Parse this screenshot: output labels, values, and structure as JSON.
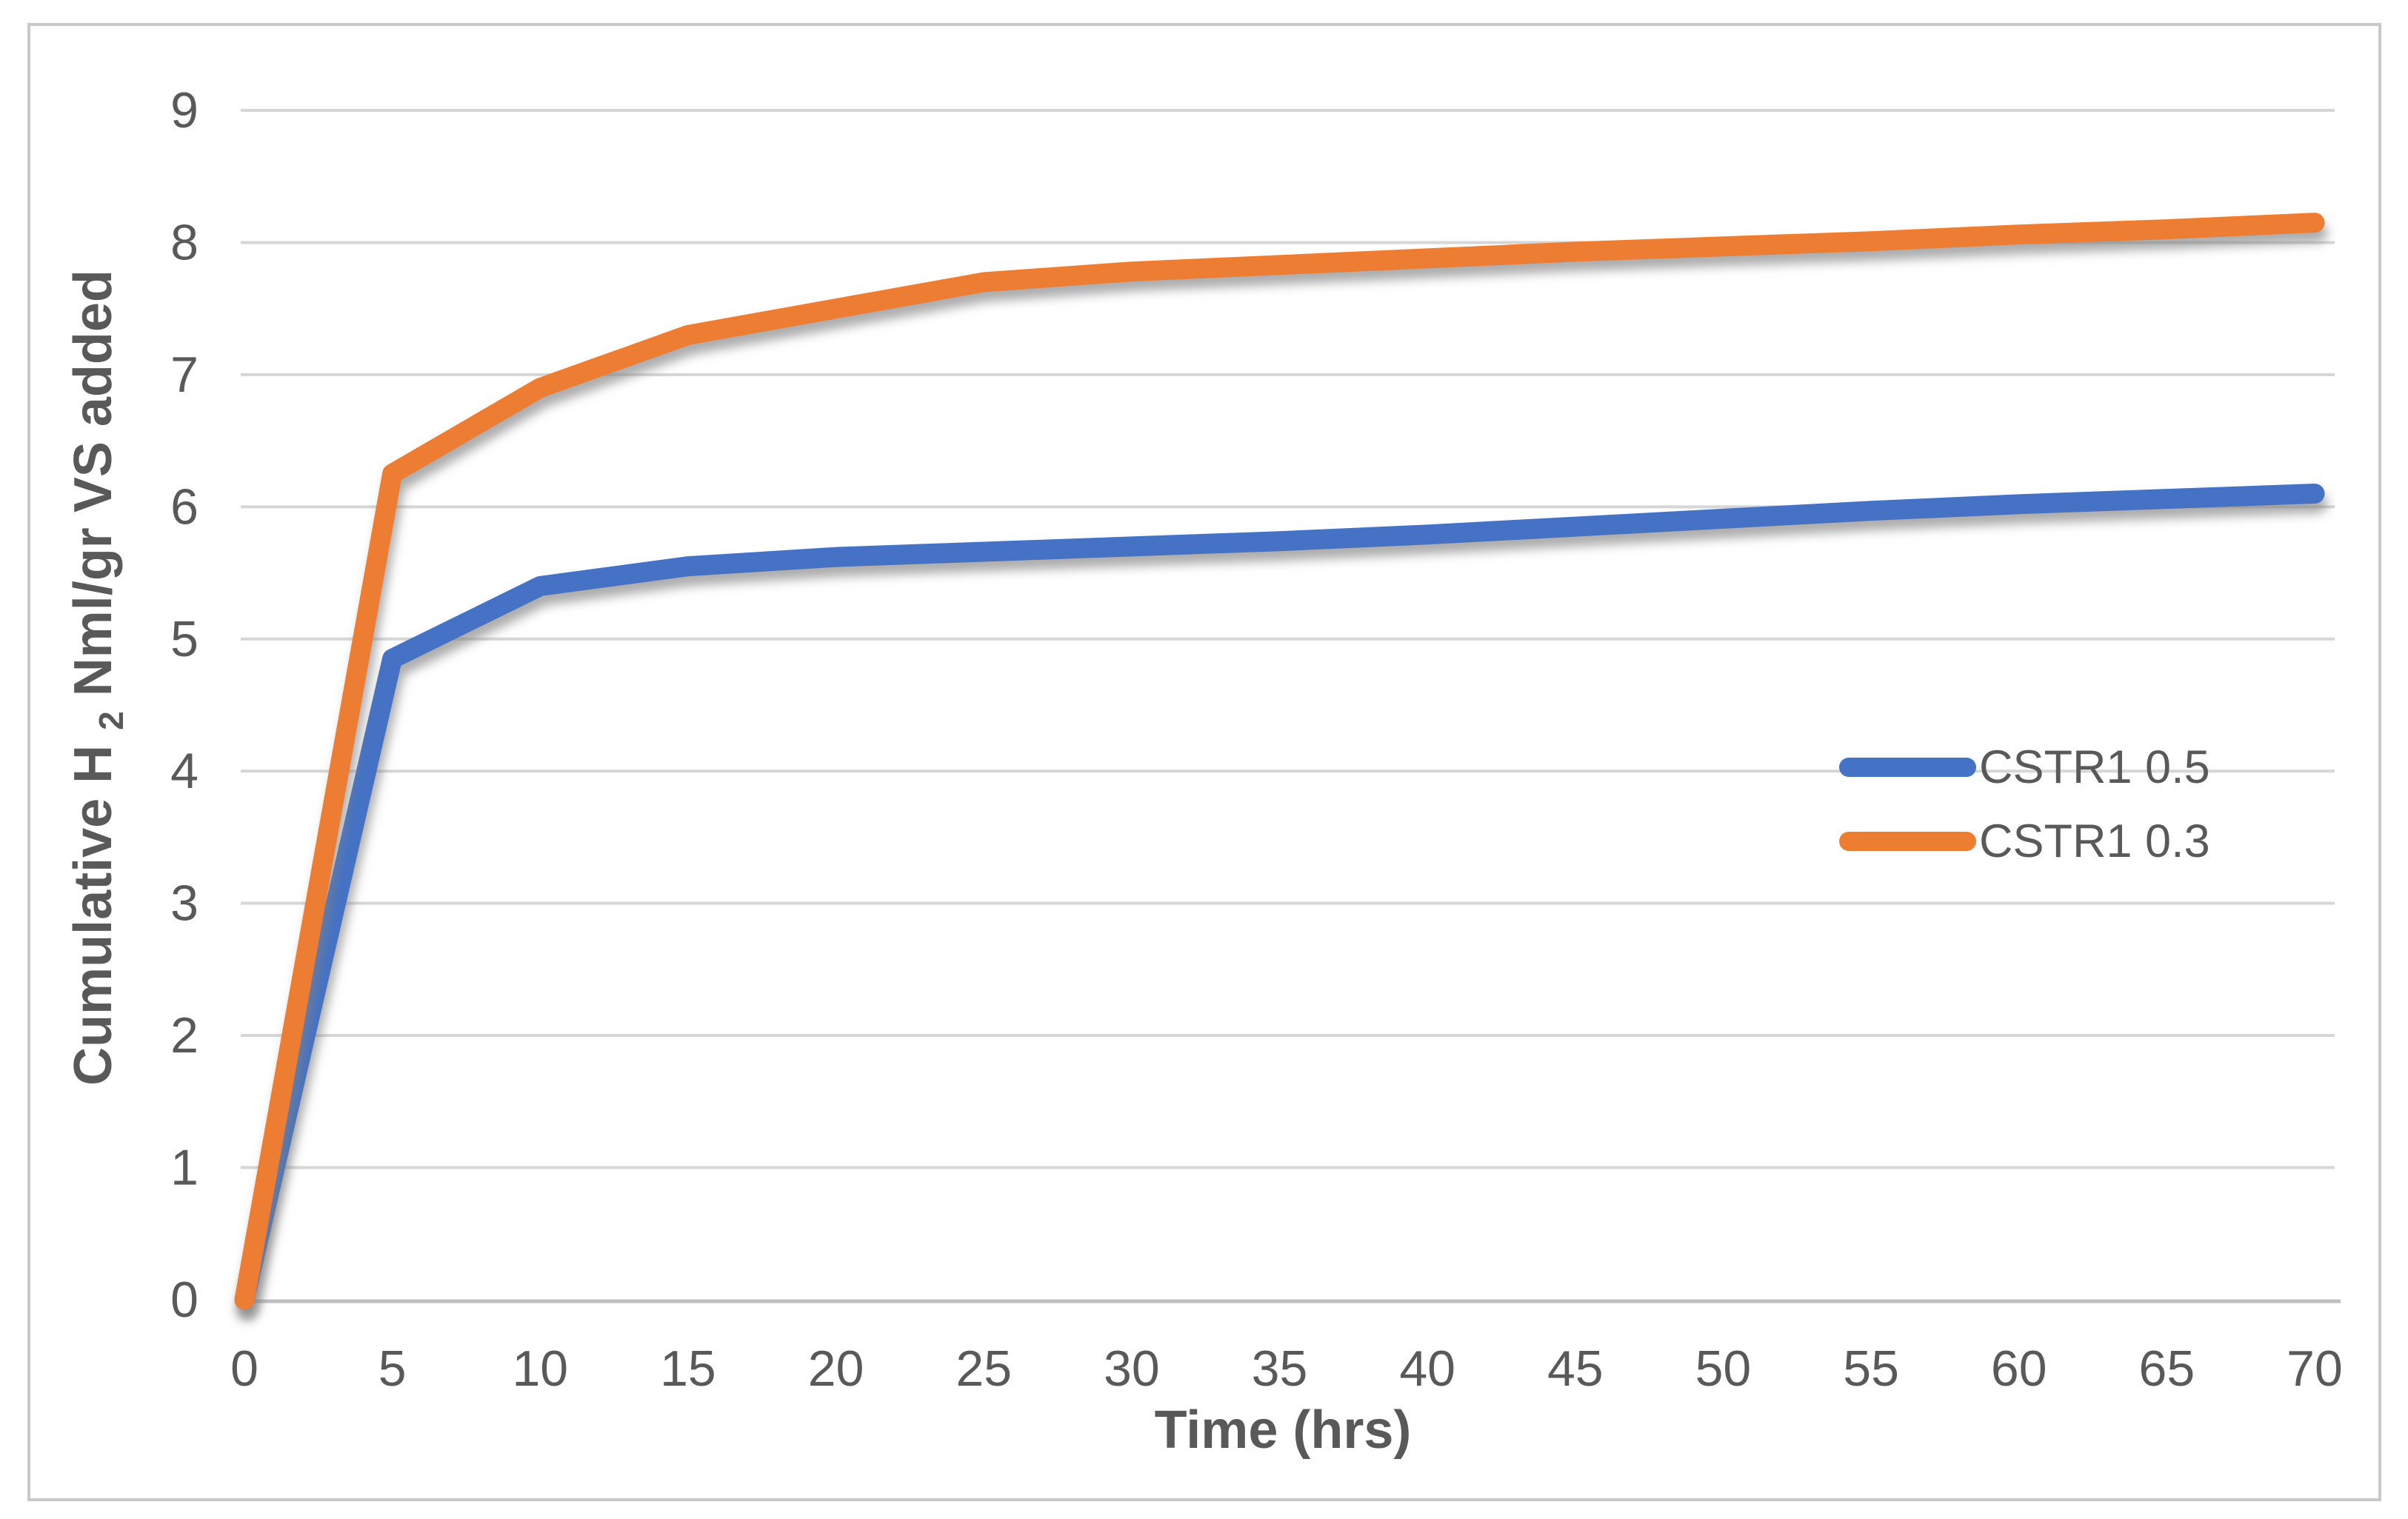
{
  "chart_data": {
    "type": "line",
    "title": "",
    "xlabel": "Time (hrs)",
    "ylabel": "Cumulative H2 Nml/gr VS added",
    "ylabel_parts": {
      "pre": "Cumulative H",
      "sub": "2",
      "post": " Nml/gr VS added"
    },
    "x": [
      0,
      5,
      10,
      15,
      20,
      25,
      30,
      35,
      40,
      45,
      50,
      55,
      60,
      65,
      70
    ],
    "xticks": [
      0,
      5,
      10,
      15,
      20,
      25,
      30,
      35,
      40,
      45,
      50,
      55,
      60,
      65,
      70
    ],
    "yticks": [
      0,
      1,
      2,
      3,
      4,
      5,
      6,
      7,
      8,
      9
    ],
    "xlim": [
      0,
      70
    ],
    "ylim": [
      0,
      9
    ],
    "grid": "horizontal-only",
    "legend_position": "middle-right-inside",
    "series": [
      {
        "name": "CSTR1 0.5",
        "color": "#4472C4",
        "values": [
          0,
          4.85,
          5.4,
          5.55,
          5.62,
          5.66,
          5.7,
          5.74,
          5.79,
          5.85,
          5.91,
          5.97,
          6.02,
          6.06,
          6.1
        ]
      },
      {
        "name": "CSTR1 0.3",
        "color": "#ED7D31",
        "values": [
          0,
          6.25,
          6.9,
          7.3,
          7.5,
          7.7,
          7.78,
          7.83,
          7.88,
          7.93,
          7.97,
          8.01,
          8.06,
          8.1,
          8.15
        ]
      }
    ]
  },
  "colors": {
    "gridline": "#D6D6D6",
    "axis_line": "#BFBFBF",
    "frame_border": "#C9C9C9",
    "text": "#595959",
    "background": "#FFFFFF"
  }
}
